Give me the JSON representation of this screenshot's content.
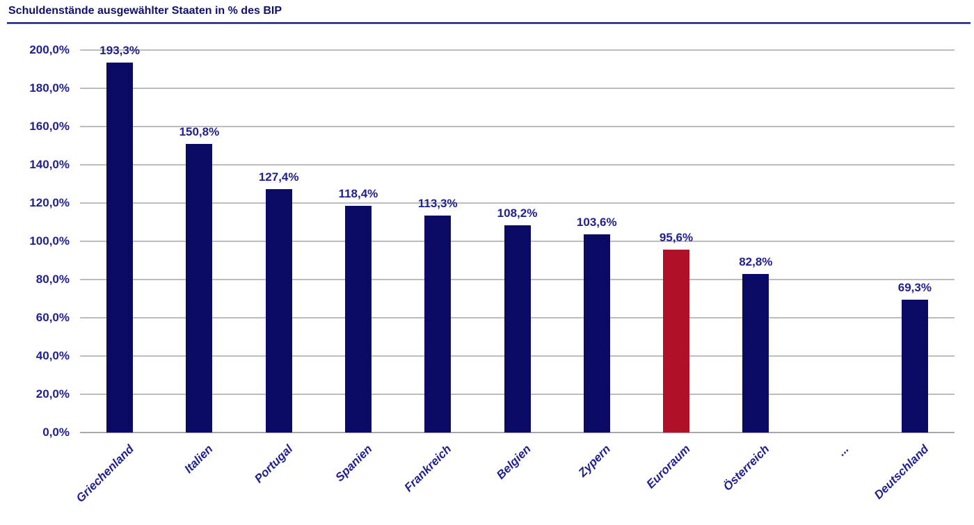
{
  "header": {
    "title": "Schuldenstände ausgewählter Staaten in % des BIP"
  },
  "chart_data": {
    "type": "bar",
    "title": "Schuldenstände ausgewählter Staaten in % des BIP",
    "categories": [
      "Griechenland",
      "Italien",
      "Portugal",
      "Spanien",
      "Frankreich",
      "Belgien",
      "Zypern",
      "Euroraum",
      "Österreich",
      "...",
      "Deutschland"
    ],
    "values": [
      193.3,
      150.8,
      127.4,
      118.4,
      113.3,
      108.2,
      103.6,
      95.6,
      82.8,
      null,
      69.3
    ],
    "value_labels": [
      "193,3%",
      "150,8%",
      "127,4%",
      "118,4%",
      "113,3%",
      "108,2%",
      "103,6%",
      "95,6%",
      "82,8%",
      "",
      "69,3%"
    ],
    "xlabel": "",
    "ylabel": "",
    "ylim": [
      0,
      200
    ],
    "ytick_step": 20,
    "ytick_labels": [
      "0,0%",
      "20,0%",
      "40,0%",
      "60,0%",
      "80,0%",
      "100,0%",
      "120,0%",
      "140,0%",
      "160,0%",
      "180,0%",
      "200,0%"
    ],
    "grid": true,
    "legend_position": "none",
    "bar_color": "#0a0a64",
    "highlight_color": "#b01128",
    "highlight_category": "Euroraum",
    "text_color": "#1f1f8f",
    "gridline_color": "#bdbdbd"
  }
}
